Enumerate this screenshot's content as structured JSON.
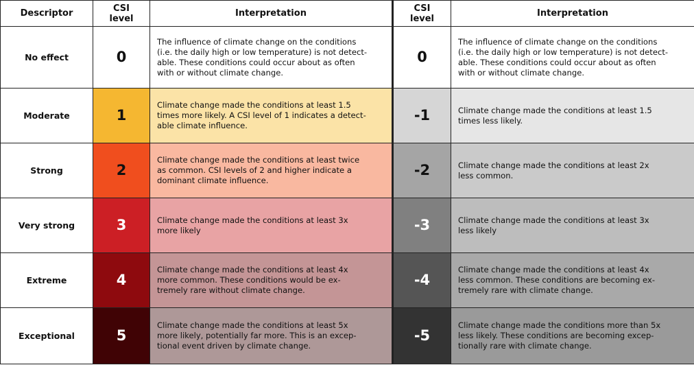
{
  "table": {
    "header": [
      "Descriptor",
      "CSI level",
      "Interpretation",
      "CSI level",
      "Interpretation"
    ],
    "rows": [
      [
        "No effect",
        "0",
        "The influence of climate change on the conditions\n(i.e. the daily high or low temperature) is not detect-\nable. These conditions could occur about as often\nwith or without climate change.",
        "0",
        "The influence of climate change on the conditions\n(i.e. the daily high or low temperature) is not detect-\nable. These conditions could occur about as often\nwith or without climate change."
      ],
      [
        "Moderate",
        "1",
        "Climate change made the conditions at least 1.5\ntimes more likely. A CSI level of 1 indicates a detect-\nable climate influence.",
        "-1",
        "Climate change made the conditions at least 1.5\ntimes less likely."
      ],
      [
        "Strong",
        "2",
        "Climate change made the conditions at least twice\nas common. CSI levels of 2 and higher indicate a\ndominant climate influence.",
        "-2",
        "Climate change made the conditions at least 2x\nless common."
      ],
      [
        "Very strong",
        "3",
        "Climate change made the conditions at least 3x\nmore likely",
        "-3",
        "Climate change made the conditions at least 3x\nless likely"
      ],
      [
        "Extreme",
        "4",
        "Climate change made the conditions at least 4x\nmore common. These conditions would be ex-\ntremely rare without climate change.",
        "-4",
        "Climate change made the conditions at least 4x\nless common. These conditions are becoming ex-\ntremely rare with climate change."
      ],
      [
        "Exceptional",
        "5",
        "Climate change made the conditions at least 5x\nmore likely, potentially far more. This is an excep-\ntional event driven by climate change.",
        "-5",
        "Climate change made the conditions more than 5x\nless likely. These conditions are becoming excep-\ntionally rare with climate change."
      ]
    ]
  }
}
